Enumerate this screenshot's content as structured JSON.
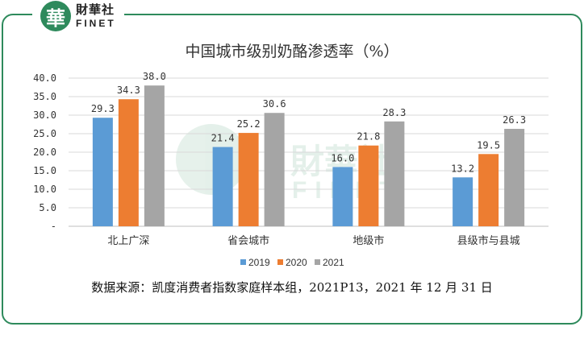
{
  "brand": {
    "logo_char": "華",
    "name_cn": "財華社",
    "name_en": "FINET"
  },
  "watermark": {
    "cn": "財華社",
    "en": "FINET"
  },
  "source_note": "数据来源：凯度消费者指数家庭样本组，2021P13，2021 年 12 月 31 日",
  "colors": {
    "frame": "#2e8a5c",
    "s2019": "#5b9bd5",
    "s2020": "#ed7d31",
    "s2021": "#a5a5a5"
  },
  "chart_data": {
    "type": "bar",
    "title": "中国城市级别奶酪渗透率（%）",
    "categories": [
      "北上广深",
      "省会城市",
      "地级市",
      "县级市与县城"
    ],
    "series": [
      {
        "name": "2019",
        "values": [
          29.3,
          21.4,
          16.0,
          13.2
        ]
      },
      {
        "name": "2020",
        "values": [
          34.3,
          25.2,
          21.8,
          19.5
        ]
      },
      {
        "name": "2021",
        "values": [
          38.0,
          30.6,
          28.3,
          26.3
        ]
      }
    ],
    "value_labels": [
      [
        "29.3",
        "21.4",
        "16.0",
        "13.2"
      ],
      [
        "34.3",
        "25.2",
        "21.8",
        "19.5"
      ],
      [
        "38.0",
        "30.6",
        "28.3",
        "26.3"
      ]
    ],
    "yticks": [
      "-",
      "5.0",
      "10.0",
      "15.0",
      "20.0",
      "25.0",
      "30.0",
      "35.0",
      "40.0"
    ],
    "ylim": [
      0,
      40
    ],
    "xlabel": "",
    "ylabel": "",
    "grid": true,
    "legend_position": "bottom-center"
  }
}
